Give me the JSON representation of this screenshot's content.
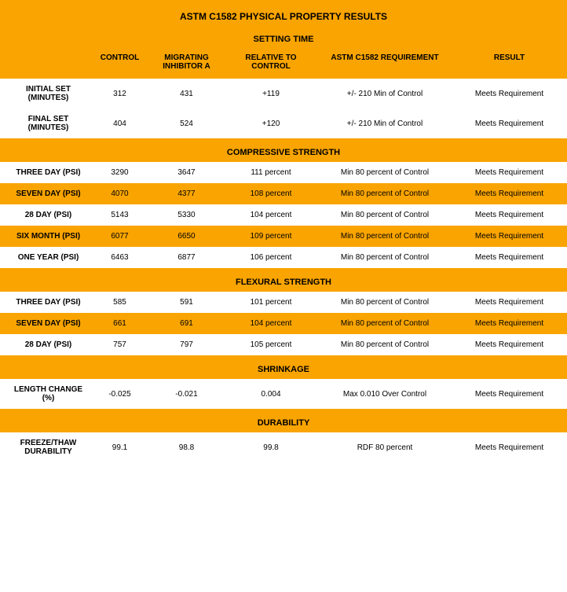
{
  "colors": {
    "orange": "#f9a400",
    "white": "#ffffff",
    "text": "#000000"
  },
  "title": "ASTM C1582 PHYSICAL PROPERTY RESULTS",
  "columns": {
    "c0": "",
    "c1": "CONTROL",
    "c2": "MIGRATING INHIBITOR A",
    "c3": "RELATIVE TO CONTROL",
    "c4": "ASTM C1582 REQUIREMENT",
    "c5": "RESULT"
  },
  "sections": [
    {
      "name": "SETTING TIME",
      "show_headers": true,
      "rows": [
        {
          "bg": "white",
          "label": "INITIAL  SET (MINUTES)",
          "control": "312",
          "inhibitor": "431",
          "relative": "+119",
          "req": "+/- 210 Min of Control",
          "result": "Meets Requirement"
        },
        {
          "bg": "white",
          "label": "FINAL  SET (MINUTES)",
          "control": "404",
          "inhibitor": "524",
          "relative": "+120",
          "req": "+/- 210 Min of Control",
          "result": "Meets Requirement"
        }
      ]
    },
    {
      "name": "COMPRESSIVE STRENGTH",
      "show_headers": false,
      "rows": [
        {
          "bg": "white",
          "label": "THREE DAY (PSI)",
          "control": "3290",
          "inhibitor": "3647",
          "relative": "111 percent",
          "req": "Min 80 percent of Control",
          "result": "Meets Requirement"
        },
        {
          "bg": "orange",
          "label": "SEVEN DAY (PSI)",
          "control": "4070",
          "inhibitor": "4377",
          "relative": "108 percent",
          "req": "Min 80 percent of Control",
          "result": "Meets Requirement"
        },
        {
          "bg": "white",
          "label": "28 DAY (PSI)",
          "control": "5143",
          "inhibitor": "5330",
          "relative": "104 percent",
          "req": "Min 80 percent of Control",
          "result": "Meets Requirement"
        },
        {
          "bg": "orange",
          "label": "SIX MONTH (PSI)",
          "control": "6077",
          "inhibitor": "6650",
          "relative": "109 percent",
          "req": "Min 80 percent of Control",
          "result": "Meets Requirement"
        },
        {
          "bg": "white",
          "label": "ONE YEAR (PSI)",
          "control": "6463",
          "inhibitor": "6877",
          "relative": "106 percent",
          "req": "Min 80 percent of Control",
          "result": "Meets Requirement"
        }
      ]
    },
    {
      "name": "FLEXURAL STRENGTH",
      "show_headers": false,
      "rows": [
        {
          "bg": "white",
          "label": "THREE DAY (PSI)",
          "control": "585",
          "inhibitor": "591",
          "relative": "101 percent",
          "req": "Min 80 percent of Control",
          "result": "Meets Requirement"
        },
        {
          "bg": "orange",
          "label": "SEVEN DAY (PSI)",
          "control": "661",
          "inhibitor": "691",
          "relative": "104 percent",
          "req": "Min 80 percent of Control",
          "result": "Meets Requirement"
        },
        {
          "bg": "white",
          "label": "28 DAY (PSI)",
          "control": "757",
          "inhibitor": "797",
          "relative": "105 percent",
          "req": "Min 80 percent of Control",
          "result": "Meets Requirement"
        }
      ]
    },
    {
      "name": "SHRINKAGE",
      "show_headers": false,
      "rows": [
        {
          "bg": "white",
          "label": "LENGTH CHANGE (%)",
          "control": "-0.025",
          "inhibitor": "-0.021",
          "relative": "0.004",
          "req": "Max 0.010 Over Control",
          "result": "Meets Requirement"
        }
      ]
    },
    {
      "name": "DURABILITY",
      "show_headers": false,
      "rows": [
        {
          "bg": "white",
          "label": "FREEZE/THAW DURABILITY",
          "control": "99.1",
          "inhibitor": "98.8",
          "relative": "99.8",
          "req": "RDF 80 percent",
          "result": "Meets Requirement"
        }
      ]
    }
  ]
}
